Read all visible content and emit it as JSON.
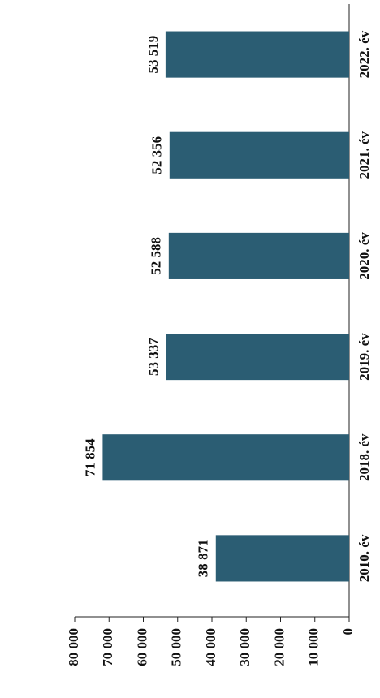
{
  "chart_data": {
    "type": "bar",
    "categories": [
      "2010. év",
      "2018. év",
      "2019. év",
      "2020. év",
      "2021. év",
      "2022. év"
    ],
    "values": [
      38871,
      71854,
      53337,
      52588,
      52356,
      53519
    ],
    "value_labels": [
      "38 871",
      "71 854",
      "53 337",
      "52 588",
      "52 356",
      "53 519"
    ],
    "color": "#2b5d73",
    "ylim": [
      0,
      80000
    ],
    "yticks": [
      {
        "value": 0,
        "label": "0"
      },
      {
        "value": 10000,
        "label": "10 000"
      },
      {
        "value": 20000,
        "label": "20 000"
      },
      {
        "value": 30000,
        "label": "30 000"
      },
      {
        "value": 40000,
        "label": "40 000"
      },
      {
        "value": 50000,
        "label": "50 000"
      },
      {
        "value": 60000,
        "label": "60 000"
      },
      {
        "value": 70000,
        "label": "70 000"
      },
      {
        "value": 80000,
        "label": "80 000"
      }
    ]
  }
}
